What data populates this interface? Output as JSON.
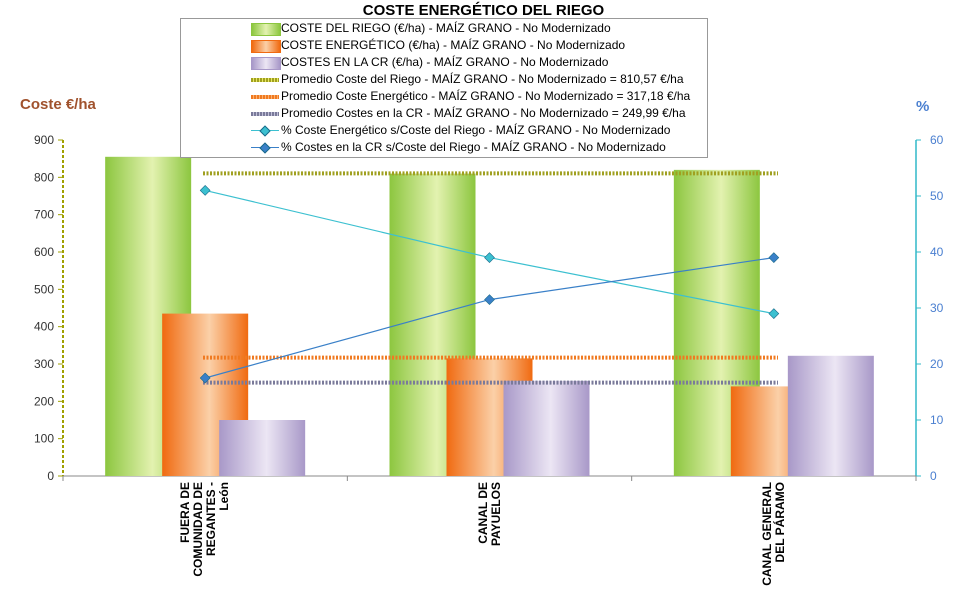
{
  "chart_data": {
    "type": "bar",
    "title": "COSTE ENERGÉTICO DEL RIEGO",
    "ylabel": "Coste €/ha",
    "y2label": "%",
    "ylim": [
      0,
      900
    ],
    "y2lim": [
      0,
      60
    ],
    "yticks": [
      "0",
      "100",
      "200",
      "300",
      "400",
      "500",
      "600",
      "700",
      "800",
      "900"
    ],
    "y2ticks": [
      "0",
      "10",
      "20",
      "30",
      "40",
      "50",
      "60"
    ],
    "categories": [
      [
        "FUERA DE",
        "COMUNIDAD DE",
        "REGANTES -",
        "León"
      ],
      [
        "CANAL DE",
        "PAYUELOS"
      ],
      [
        "CANAL GENERAL",
        "DEL PÁRAMO"
      ]
    ],
    "series": [
      {
        "name": "COSTE DEL RIEGO (€/ha) - MAÍZ GRANO - No Modernizado",
        "kind": "bar",
        "axis": "left",
        "color": "#9acd32",
        "values": [
          855,
          810,
          820
        ]
      },
      {
        "name": "COSTE ENERGÉTICO (€/ha) - MAÍZ GRANO - No Modernizado",
        "kind": "bar",
        "axis": "left",
        "color": "#f07a20",
        "values": [
          435,
          315,
          240
        ]
      },
      {
        "name": "COSTES EN LA CR (€/ha) - MAÍZ GRANO - No Modernizado",
        "kind": "bar",
        "axis": "left",
        "color": "#b8a8d0",
        "values": [
          150,
          255,
          322
        ]
      },
      {
        "name": "Promedio Coste del Riego - MAÍZ GRANO - No Modernizado = 810,57 €/ha",
        "kind": "hline",
        "axis": "left",
        "color": "#a0a020",
        "value": 810.57
      },
      {
        "name": "Promedio Coste Energético - MAÍZ GRANO - No Modernizado = 317,18 €/ha",
        "kind": "hline",
        "axis": "left",
        "color": "#f07a20",
        "value": 317.18
      },
      {
        "name": "Promedio Costes en la CR - MAÍZ GRANO - No Modernizado = 249,99 €/ha",
        "kind": "hline",
        "axis": "left",
        "color": "#7a7a9a",
        "value": 249.99
      },
      {
        "name": "% Coste Energético s/Coste del Riego - MAÍZ GRANO - No Modernizado",
        "kind": "line",
        "axis": "right",
        "color": "#3cc0d0",
        "values": [
          51,
          39,
          29
        ]
      },
      {
        "name": "% Costes en la CR s/Coste del Riego - MAÍZ GRANO - No Modernizado",
        "kind": "line",
        "axis": "right",
        "color": "#3a80c8",
        "values": [
          17.5,
          31.5,
          39
        ]
      }
    ],
    "colors": {
      "left_axis": "#a0a000",
      "right_axis": "#30b8c8",
      "left_label": "#a0522d",
      "right_label": "#4a7fd0"
    }
  }
}
